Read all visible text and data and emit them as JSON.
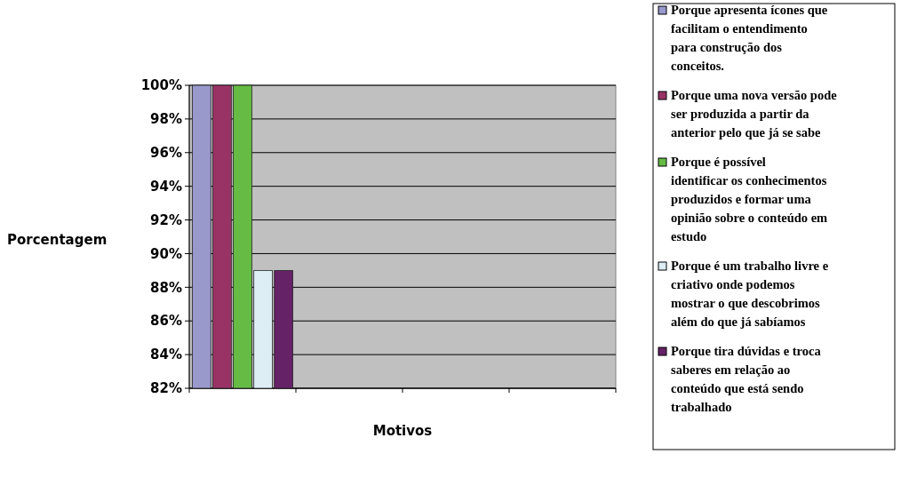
{
  "chart_data": {
    "type": "bar",
    "xlabel": "Motivos",
    "ylabel": "Porcentagem",
    "categories": [
      null,
      null,
      null,
      null
    ],
    "series": [
      {
        "name": "Porque apresenta ícones que facilitam o entendimento para construção dos conceitos.",
        "color": "#9999cc",
        "values": [
          100,
          null,
          null,
          null
        ]
      },
      {
        "name": "Porque uma nova versão pode ser produzida a partir da anterior pelo que já se sabe",
        "color": "#993366",
        "values": [
          100,
          null,
          null,
          null
        ]
      },
      {
        "name": "Porque é possível identificar os conhecimentos produzidos e formar uma opinião sobre o conteúdo em estudo",
        "color": "#66bb44",
        "values": [
          100,
          null,
          null,
          null
        ]
      },
      {
        "name": "Porque é um trabalho livre e criativo onde podemos mostrar o que descobrimos além do que já sabíamos",
        "color": "#ddeef5",
        "values": [
          89,
          null,
          null,
          null
        ]
      },
      {
        "name": "Porque tira dúvidas e troca saberes em relação ao conteúdo que está sendo trabalhado",
        "color": "#662266",
        "values": [
          89,
          null,
          null,
          null
        ]
      }
    ],
    "ylim": [
      82,
      100
    ],
    "yticks": [
      {
        "value": 82,
        "label": "82%"
      },
      {
        "value": 84,
        "label": "84%"
      },
      {
        "value": 86,
        "label": "86%"
      },
      {
        "value": 88,
        "label": "88%"
      },
      {
        "value": 90,
        "label": "90%"
      },
      {
        "value": 92,
        "label": "92%"
      },
      {
        "value": 94,
        "label": "94%"
      },
      {
        "value": 96,
        "label": "96%"
      },
      {
        "value": 98,
        "label": "98%"
      },
      {
        "value": 100,
        "label": "100%"
      }
    ],
    "grid": "y",
    "legend": "right"
  }
}
